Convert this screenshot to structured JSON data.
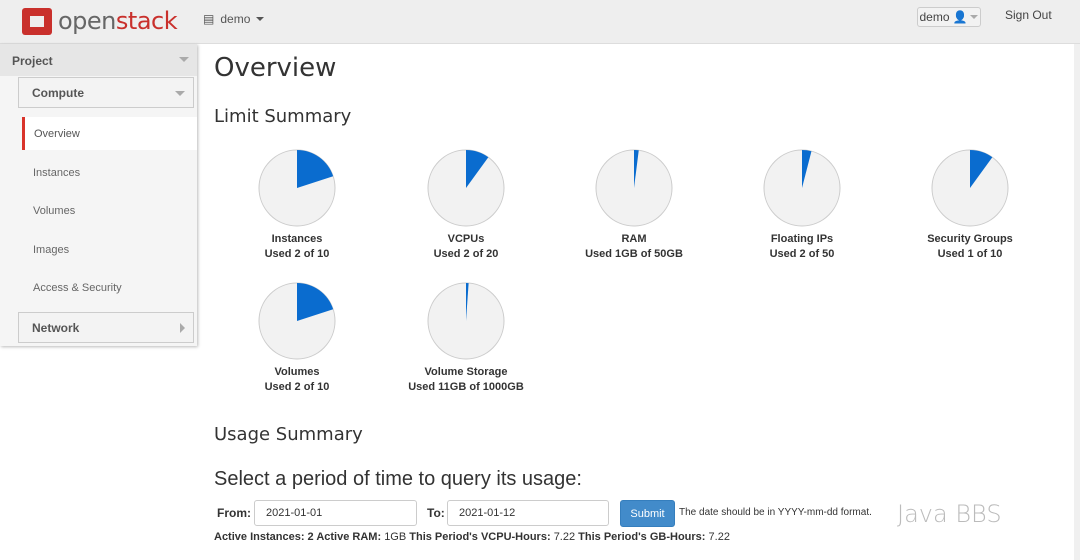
{
  "header": {
    "logo_a": "open",
    "logo_b": "stack",
    "project": "demo",
    "user": "demo",
    "signout": "Sign Out"
  },
  "sidebar": {
    "project": "Project",
    "compute": "Compute",
    "active": "Overview",
    "items": [
      "Instances",
      "Volumes",
      "Images",
      "Access & Security"
    ],
    "network": "Network"
  },
  "main": {
    "title": "Overview",
    "limit_title": "Limit Summary",
    "usage_title": "Usage Summary",
    "period_title": "Select a period of time to query its usage:"
  },
  "limits": [
    {
      "name": "Instances",
      "used": "Used 2 of 10",
      "fraction": 0.2
    },
    {
      "name": "VCPUs",
      "used": "Used 2 of 20",
      "fraction": 0.1
    },
    {
      "name": "RAM",
      "used": "Used 1GB of 50GB",
      "fraction": 0.02
    },
    {
      "name": "Floating IPs",
      "used": "Used 2 of 50",
      "fraction": 0.04
    },
    {
      "name": "Security Groups",
      "used": "Used 1 of 10",
      "fraction": 0.1
    },
    {
      "name": "Volumes",
      "used": "Used 2 of 10",
      "fraction": 0.2
    },
    {
      "name": "Volume Storage",
      "used": "Used 11GB of 1000GB",
      "fraction": 0.011
    }
  ],
  "colors": {
    "pie_fill": "#0a6ccf",
    "pie_bg": "#f2f2f2",
    "accent": "#d9342b",
    "button": "#428bca"
  },
  "form": {
    "from_label": "From:",
    "from_value": "2021-01-01",
    "to_label": "To:",
    "to_value": "2021-01-12",
    "submit": "Submit",
    "help": "The date should be in YYYY-mm-dd format."
  },
  "stats": {
    "l1": "Active Instances:",
    "v1": "2",
    "l2": "Active RAM:",
    "v2": "1GB",
    "l3": "This Period's VCPU-Hours:",
    "v3": "7.22",
    "l4": "This Period's GB-Hours:",
    "v4": "7.22"
  },
  "watermark": "Java BBS"
}
